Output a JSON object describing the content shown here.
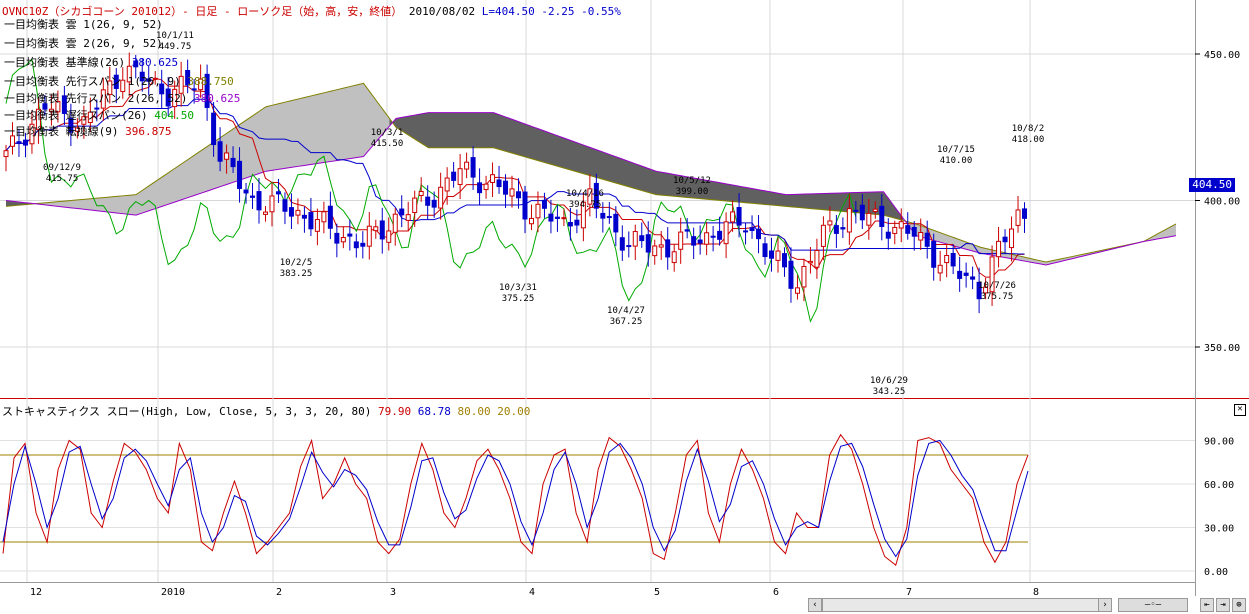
{
  "header": {
    "symbol": "OVNC10Z（シカゴコーン 201012）- 日足 - ローソク足（始，高，安，終値）",
    "date": "2010/08/02",
    "last": "L=404.50",
    "change": "-2.25",
    "change_pct": "-0.55%"
  },
  "legend": [
    {
      "label": "一目均衡表 雲 1(26, 9, 52)",
      "value": "",
      "color": "#000000"
    },
    {
      "label": "一目均衡表 雲 2(26, 9, 52)",
      "value": "",
      "color": "#000000"
    },
    {
      "label": "一目均衡表 基準線(26)",
      "value": "380.625",
      "color": "#0000cc"
    },
    {
      "label": "一目均衡表 先行スパン 1(26, 9)",
      "value": "388.750",
      "color": "#808000"
    },
    {
      "label": "一目均衡表 先行スパン 2(26, 52)",
      "value": "380.625",
      "color": "#9900cc"
    },
    {
      "label": "一目均衡表 遅行スパン(26)",
      "value": "404.50",
      "color": "#00aa00"
    },
    {
      "label": "一目均衡表 転換線(9)",
      "value": "396.875",
      "color": "#cc0000"
    }
  ],
  "stoch_header": {
    "label": "ストキャスティクス スロー(High, Low, Close, 5, 3, 3, 20, 80)",
    "k": "79.90",
    "d": "68.78",
    "upper": "80.00",
    "lower": "20.00"
  },
  "current_price_tag": "404.50",
  "colors": {
    "up": "#cc0000",
    "down": "#0000cc",
    "cloud_bull": "#c0c0c0",
    "cloud_bear": "#606060",
    "chikou": "#00aa00",
    "tenkan": "#cc0000",
    "kijun": "#0000cc",
    "band": "#a08000"
  },
  "chart_data": [
    {
      "type": "candlestick",
      "title": "OVNC10Z（シカゴコーン 201012）- 日足",
      "y_axis_ticks": [
        "450.00",
        "400.00",
        "350.00"
      ],
      "y_tick_values": [
        450,
        400,
        350
      ],
      "x_axis_labels": [
        "12",
        "2010",
        "2",
        "3",
        "4",
        "5",
        "6",
        "7",
        "8"
      ],
      "annotations": [
        {
          "date": "10/1/11",
          "value": "449.75"
        },
        {
          "date": "09/12/9",
          "value": "415.75"
        },
        {
          "date": "10/3/1",
          "value": "415.50"
        },
        {
          "date": "10/2/5",
          "value": "383.25"
        },
        {
          "date": "10/5/12",
          "value": "399.00"
        },
        {
          "date": "10/4/16",
          "value": "394.75"
        },
        {
          "date": "10/3/31",
          "value": "375.25"
        },
        {
          "date": "10/4/27",
          "value": "367.25"
        },
        {
          "date": "10/7/15",
          "value": "410.00"
        },
        {
          "date": "10/8/2",
          "value": "418.00"
        },
        {
          "date": "10/7/26",
          "value": "375.75"
        },
        {
          "date": "10/6/29",
          "value": "343.25"
        }
      ]
    },
    {
      "type": "line",
      "title": "ストキャスティクス スロー",
      "y_axis_ticks": [
        "90.00",
        "60.00",
        "30.00",
        "0.00"
      ],
      "y_tick_values": [
        90,
        60,
        30,
        0
      ],
      "levels": [
        80,
        20
      ],
      "series": [
        {
          "name": "%K",
          "color": "#cc0000",
          "values": [
            12,
            78,
            88,
            40,
            20,
            70,
            90,
            84,
            40,
            30,
            62,
            88,
            82,
            70,
            50,
            40,
            88,
            70,
            20,
            14,
            40,
            62,
            40,
            12,
            20,
            30,
            40,
            72,
            90,
            50,
            60,
            78,
            60,
            50,
            20,
            12,
            22,
            60,
            88,
            70,
            40,
            30,
            50,
            76,
            84,
            70,
            50,
            20,
            12,
            60,
            80,
            84,
            40,
            20,
            70,
            92,
            86,
            70,
            50,
            12,
            8,
            40,
            80,
            90,
            40,
            20,
            60,
            84,
            70,
            50,
            20,
            12,
            40,
            30,
            30,
            80,
            94,
            84,
            60,
            30,
            10,
            4,
            30,
            90,
            92,
            88,
            70,
            60,
            50,
            20,
            6,
            20,
            60,
            80
          ]
        },
        {
          "name": "%D",
          "color": "#0000cc",
          "values": [
            20,
            60,
            86,
            60,
            30,
            50,
            82,
            86,
            60,
            36,
            50,
            78,
            84,
            76,
            60,
            45,
            70,
            78,
            40,
            20,
            30,
            52,
            48,
            24,
            18,
            26,
            36,
            58,
            82,
            68,
            58,
            70,
            66,
            56,
            34,
            18,
            18,
            44,
            76,
            78,
            54,
            36,
            42,
            64,
            80,
            76,
            60,
            34,
            18,
            40,
            70,
            82,
            60,
            30,
            50,
            82,
            88,
            78,
            60,
            30,
            14,
            28,
            62,
            84,
            62,
            34,
            46,
            72,
            76,
            60,
            36,
            18,
            30,
            34,
            30,
            62,
            86,
            88,
            72,
            46,
            22,
            10,
            22,
            66,
            88,
            90,
            80,
            66,
            56,
            34,
            14,
            14,
            42,
            69
          ]
        }
      ]
    }
  ]
}
